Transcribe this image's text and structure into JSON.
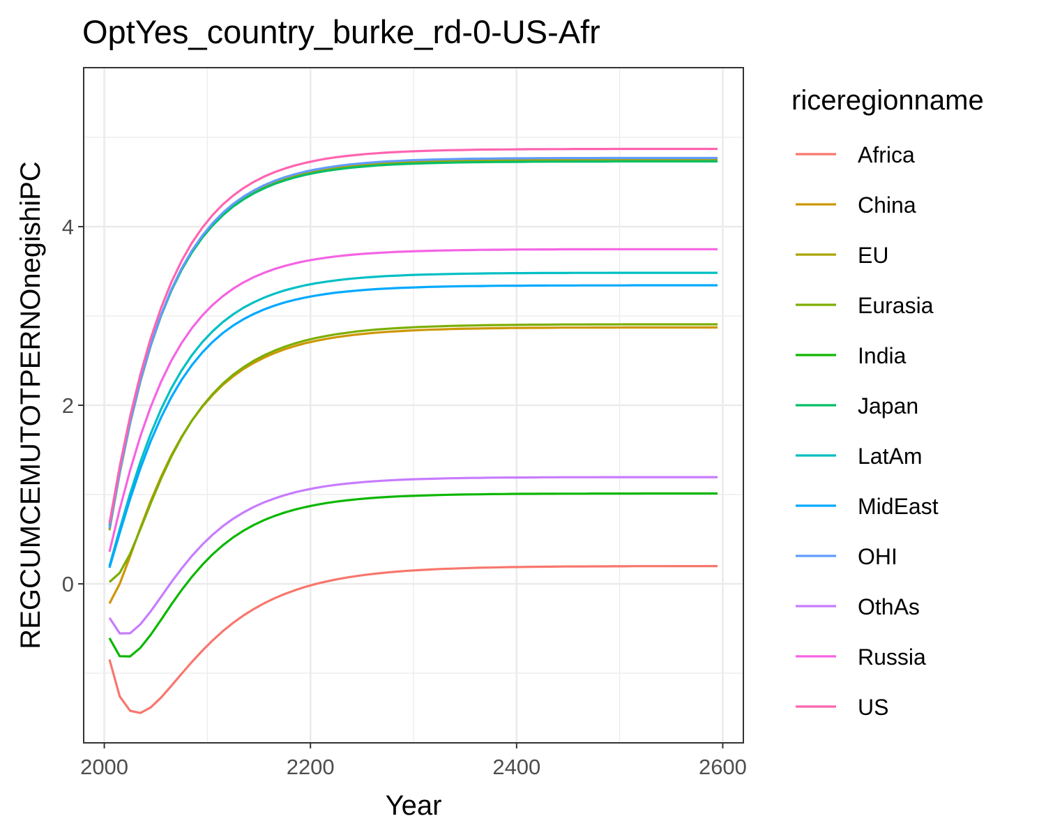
{
  "chart_data": {
    "type": "line",
    "title": "OptYes_country_burke_rd-0-US-Afr",
    "xlabel": "Year",
    "ylabel": "REGCUMCEMUTOTPERNOnegishiPC",
    "xlim": [
      1980,
      2620
    ],
    "ylim": [
      -1.78,
      5.78
    ],
    "xticks": [
      2000,
      2200,
      2400,
      2600
    ],
    "yticks": [
      0,
      2,
      4
    ],
    "grid": true,
    "legend_title": "riceregionname",
    "legend_position": "right",
    "x": [
      2005,
      2015,
      2025,
      2035,
      2045,
      2055,
      2065,
      2075,
      2085,
      2095,
      2105,
      2115,
      2125,
      2135,
      2145,
      2155,
      2165,
      2175,
      2185,
      2195,
      2205,
      2215,
      2225,
      2235,
      2245,
      2255,
      2265,
      2275,
      2285,
      2295,
      2305,
      2315,
      2325,
      2335,
      2345,
      2355,
      2365,
      2375,
      2385,
      2395,
      2405,
      2415,
      2425,
      2435,
      2445,
      2455,
      2465,
      2475,
      2485,
      2495,
      2505,
      2515,
      2525,
      2535,
      2545,
      2555,
      2565,
      2575,
      2585,
      2595
    ],
    "series": [
      {
        "name": "Africa",
        "color": "#F8766D",
        "values": [
          -0.847,
          -1.26,
          -1.421,
          -1.446,
          -1.384,
          -1.274,
          -1.143,
          -1.007,
          -0.874,
          -0.749,
          -0.634,
          -0.53,
          -0.437,
          -0.354,
          -0.282,
          -0.218,
          -0.162,
          -0.113,
          -0.071,
          -0.034,
          -0.002,
          0.026,
          0.05,
          0.07,
          0.088,
          0.104,
          0.117,
          0.128,
          0.138,
          0.147,
          0.154,
          0.16,
          0.166,
          0.17,
          0.174,
          0.178,
          0.181,
          0.183,
          0.186,
          0.188,
          0.189,
          0.191,
          0.192,
          0.193,
          0.194,
          0.195,
          0.195,
          0.196,
          0.196,
          0.197,
          0.197,
          0.198,
          0.198,
          0.198,
          0.198,
          0.199,
          0.199,
          0.199,
          0.199,
          0.199
        ]
      },
      {
        "name": "China",
        "color": "#CD9600",
        "values": [
          -0.22,
          0.001,
          0.307,
          0.626,
          0.926,
          1.198,
          1.438,
          1.647,
          1.828,
          1.982,
          2.114,
          2.227,
          2.323,
          2.405,
          2.474,
          2.533,
          2.584,
          2.627,
          2.663,
          2.694,
          2.72,
          2.743,
          2.762,
          2.778,
          2.792,
          2.804,
          2.814,
          2.822,
          2.829,
          2.836,
          2.841,
          2.846,
          2.849,
          2.853,
          2.856,
          2.858,
          2.86,
          2.862,
          2.863,
          2.865,
          2.866,
          2.867,
          2.867,
          2.868,
          2.869,
          2.869,
          2.869,
          2.87,
          2.87,
          2.87,
          2.871,
          2.871,
          2.871,
          2.871,
          2.871,
          2.871,
          2.871,
          2.871,
          2.871,
          2.871
        ]
      },
      {
        "name": "EU",
        "color": "#ABA300",
        "values": [
          0.6,
          1.237,
          1.791,
          2.263,
          2.663,
          2.999,
          3.282,
          3.519,
          3.718,
          3.884,
          4.023,
          4.14,
          4.238,
          4.32,
          4.389,
          4.446,
          4.495,
          4.536,
          4.57,
          4.599,
          4.623,
          4.643,
          4.66,
          4.675,
          4.687,
          4.697,
          4.706,
          4.713,
          4.719,
          4.724,
          4.729,
          4.732,
          4.735,
          4.738,
          4.74,
          4.742,
          4.744,
          4.745,
          4.746,
          4.747,
          4.748,
          4.749,
          4.749,
          4.75,
          4.75,
          4.75,
          4.751,
          4.751,
          4.751,
          4.751,
          4.752,
          4.752,
          4.752,
          4.752,
          4.752,
          4.752,
          4.752,
          4.752,
          4.752,
          4.752
        ]
      },
      {
        "name": "Eurasia",
        "color": "#7CAE00",
        "values": [
          0.02,
          0.123,
          0.335,
          0.612,
          0.901,
          1.176,
          1.423,
          1.64,
          1.828,
          1.988,
          2.125,
          2.242,
          2.342,
          2.426,
          2.498,
          2.559,
          2.611,
          2.655,
          2.693,
          2.725,
          2.752,
          2.775,
          2.795,
          2.811,
          2.826,
          2.838,
          2.848,
          2.857,
          2.864,
          2.87,
          2.876,
          2.88,
          2.884,
          2.888,
          2.89,
          2.893,
          2.895,
          2.897,
          2.898,
          2.9,
          2.901,
          2.902,
          2.902,
          2.903,
          2.904,
          2.904,
          2.904,
          2.905,
          2.905,
          2.905,
          2.906,
          2.906,
          2.906,
          2.906,
          2.906,
          2.906,
          2.906,
          2.906,
          2.906,
          2.906
        ]
      },
      {
        "name": "India",
        "color": "#0CB702",
        "values": [
          -0.607,
          -0.81,
          -0.812,
          -0.716,
          -0.57,
          -0.403,
          -0.232,
          -0.07,
          0.079,
          0.212,
          0.33,
          0.432,
          0.52,
          0.595,
          0.659,
          0.714,
          0.76,
          0.799,
          0.832,
          0.86,
          0.884,
          0.904,
          0.921,
          0.935,
          0.947,
          0.957,
          0.966,
          0.973,
          0.979,
          0.984,
          0.988,
          0.992,
          0.995,
          0.998,
          1.0,
          1.002,
          1.003,
          1.005,
          1.006,
          1.007,
          1.008,
          1.008,
          1.009,
          1.009,
          1.01,
          1.01,
          1.01,
          1.011,
          1.011,
          1.011,
          1.011,
          1.011,
          1.012,
          1.012,
          1.012,
          1.012,
          1.012,
          1.012,
          1.012,
          1.012
        ]
      },
      {
        "name": "Japan",
        "color": "#00BE67",
        "values": [
          0.65,
          1.273,
          1.816,
          2.279,
          2.672,
          3.003,
          3.281,
          3.515,
          3.711,
          3.875,
          4.012,
          4.127,
          4.224,
          4.305,
          4.373,
          4.429,
          4.477,
          4.517,
          4.551,
          4.58,
          4.603,
          4.623,
          4.64,
          4.654,
          4.666,
          4.676,
          4.685,
          4.692,
          4.698,
          4.703,
          4.707,
          4.711,
          4.714,
          4.716,
          4.719,
          4.721,
          4.722,
          4.723,
          4.724,
          4.725,
          4.726,
          4.727,
          4.727,
          4.728,
          4.728,
          4.729,
          4.729,
          4.729,
          4.729,
          4.73,
          4.73,
          4.73,
          4.73,
          4.73,
          4.73,
          4.73,
          4.73,
          4.73,
          4.73,
          4.73
        ]
      },
      {
        "name": "LatAm",
        "color": "#00BFC4",
        "values": [
          0.2,
          0.612,
          1.007,
          1.365,
          1.68,
          1.954,
          2.189,
          2.39,
          2.561,
          2.706,
          2.828,
          2.931,
          3.018,
          3.092,
          3.153,
          3.205,
          3.249,
          3.286,
          3.317,
          3.343,
          3.365,
          3.383,
          3.399,
          3.412,
          3.423,
          3.432,
          3.44,
          3.447,
          3.452,
          3.457,
          3.461,
          3.464,
          3.467,
          3.47,
          3.472,
          3.474,
          3.475,
          3.477,
          3.478,
          3.479,
          3.479,
          3.48,
          3.481,
          3.481,
          3.481,
          3.482,
          3.482,
          3.482,
          3.482,
          3.483,
          3.483,
          3.483,
          3.483,
          3.483,
          3.483,
          3.483,
          3.483,
          3.483,
          3.483,
          3.483
        ]
      },
      {
        "name": "MidEast",
        "color": "#00A9FF",
        "values": [
          0.18,
          0.57,
          0.948,
          1.293,
          1.598,
          1.862,
          2.09,
          2.284,
          2.449,
          2.59,
          2.708,
          2.808,
          2.892,
          2.963,
          3.022,
          3.073,
          3.115,
          3.151,
          3.181,
          3.206,
          3.228,
          3.246,
          3.261,
          3.273,
          3.284,
          3.293,
          3.301,
          3.307,
          3.313,
          3.317,
          3.321,
          3.325,
          3.328,
          3.33,
          3.332,
          3.334,
          3.335,
          3.337,
          3.338,
          3.339,
          3.339,
          3.34,
          3.34,
          3.341,
          3.341,
          3.341,
          3.342,
          3.342,
          3.342,
          3.342,
          3.342,
          3.343,
          3.343,
          3.343,
          3.343,
          3.343,
          3.343,
          3.343,
          3.343,
          3.343
        ]
      },
      {
        "name": "OHI",
        "color": "#619CFF",
        "values": [
          0.62,
          1.253,
          1.804,
          2.275,
          2.674,
          3.01,
          3.293,
          3.531,
          3.731,
          3.898,
          4.038,
          4.155,
          4.254,
          4.336,
          4.405,
          4.463,
          4.512,
          4.553,
          4.587,
          4.616,
          4.64,
          4.66,
          4.677,
          4.692,
          4.704,
          4.714,
          4.723,
          4.73,
          4.736,
          4.742,
          4.746,
          4.75,
          4.753,
          4.755,
          4.758,
          4.76,
          4.761,
          4.762,
          4.764,
          4.765,
          4.765,
          4.766,
          4.767,
          4.767,
          4.768,
          4.768,
          4.768,
          4.768,
          4.769,
          4.769,
          4.769,
          4.769,
          4.769,
          4.769,
          4.769,
          4.769,
          4.769,
          4.769,
          4.769,
          4.769
        ]
      },
      {
        "name": "OthAs",
        "color": "#C77CFF",
        "values": [
          -0.38,
          -0.555,
          -0.553,
          -0.453,
          -0.308,
          -0.145,
          0.018,
          0.172,
          0.313,
          0.439,
          0.55,
          0.646,
          0.729,
          0.8,
          0.861,
          0.913,
          0.956,
          0.993,
          1.025,
          1.051,
          1.074,
          1.093,
          1.109,
          1.122,
          1.133,
          1.143,
          1.151,
          1.158,
          1.164,
          1.169,
          1.173,
          1.176,
          1.179,
          1.182,
          1.184,
          1.186,
          1.187,
          1.189,
          1.19,
          1.191,
          1.191,
          1.192,
          1.193,
          1.193,
          1.194,
          1.194,
          1.194,
          1.194,
          1.195,
          1.195,
          1.195,
          1.195,
          1.195,
          1.195,
          1.195,
          1.195,
          1.195,
          1.195,
          1.195,
          1.195
        ]
      },
      {
        "name": "Russia",
        "color": "#F564E3",
        "values": [
          0.36,
          0.836,
          1.27,
          1.653,
          1.982,
          2.262,
          2.498,
          2.697,
          2.864,
          3.004,
          3.122,
          3.221,
          3.305,
          3.375,
          3.434,
          3.483,
          3.525,
          3.56,
          3.589,
          3.614,
          3.635,
          3.652,
          3.667,
          3.679,
          3.69,
          3.699,
          3.706,
          3.712,
          3.718,
          3.722,
          3.726,
          3.729,
          3.732,
          3.734,
          3.736,
          3.738,
          3.74,
          3.741,
          3.742,
          3.743,
          3.744,
          3.744,
          3.745,
          3.745,
          3.746,
          3.746,
          3.746,
          3.746,
          3.747,
          3.747,
          3.747,
          3.747,
          3.747,
          3.747,
          3.747,
          3.747,
          3.747,
          3.747,
          3.747,
          3.747
        ]
      },
      {
        "name": "US",
        "color": "#FF64B0",
        "values": [
          0.68,
          1.317,
          1.872,
          2.346,
          2.749,
          3.089,
          3.375,
          3.616,
          3.818,
          3.987,
          4.129,
          4.248,
          4.348,
          4.431,
          4.501,
          4.56,
          4.609,
          4.65,
          4.685,
          4.714,
          4.739,
          4.76,
          4.777,
          4.791,
          4.803,
          4.814,
          4.822,
          4.83,
          4.836,
          4.841,
          4.846,
          4.85,
          4.853,
          4.856,
          4.858,
          4.86,
          4.862,
          4.863,
          4.864,
          4.865,
          4.866,
          4.867,
          4.867,
          4.868,
          4.868,
          4.869,
          4.869,
          4.869,
          4.869,
          4.87,
          4.87,
          4.87,
          4.87,
          4.87,
          4.87,
          4.87,
          4.87,
          4.87,
          4.87,
          4.87
        ]
      }
    ]
  }
}
